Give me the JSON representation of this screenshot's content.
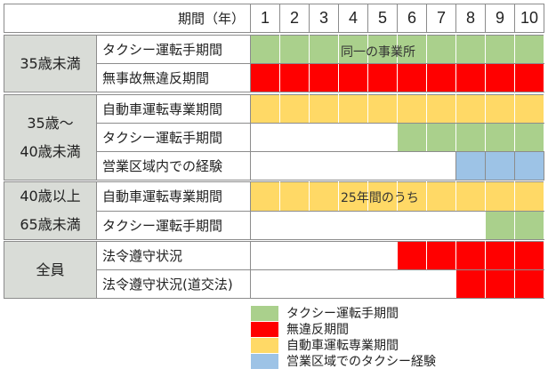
{
  "header": {
    "title": "期間（年）",
    "years": [
      "1",
      "2",
      "3",
      "4",
      "5",
      "6",
      "7",
      "8",
      "9",
      "10"
    ]
  },
  "groups": [
    {
      "label": "35歳未満",
      "rows": [
        {
          "category": "タクシー運転手期間",
          "cells": [
            "g",
            "g",
            "g",
            "g",
            "g",
            "g",
            "g",
            "g",
            "g",
            "g"
          ]
        },
        {
          "category": "無事故無違反期間",
          "cells": [
            "r",
            "r",
            "r",
            "r",
            "r",
            "r",
            "r",
            "r",
            "r",
            "r"
          ]
        }
      ],
      "note": "同一の事業所"
    },
    {
      "label": "35歳～40歳未満",
      "label_lines": [
        "35歳～",
        "40歳未満"
      ],
      "rows": [
        {
          "category": "自動車運転専業期間",
          "cells": [
            "y",
            "y",
            "y",
            "y",
            "y",
            "y",
            "y",
            "y",
            "y",
            "y"
          ]
        },
        {
          "category": "タクシー運転手期間",
          "cells": [
            "w",
            "w",
            "w",
            "w",
            "w",
            "g",
            "g",
            "g",
            "g",
            "g"
          ]
        },
        {
          "category": "営業区域内での経験",
          "cells": [
            "w",
            "w",
            "w",
            "w",
            "w",
            "w",
            "w",
            "b",
            "b",
            "b"
          ]
        }
      ]
    },
    {
      "label": "40歳以上65歳未満",
      "label_lines": [
        "40歳以上",
        "65歳未満"
      ],
      "rows": [
        {
          "category": "自動車運転専業期間",
          "cells": [
            "y",
            "y",
            "y",
            "y",
            "y",
            "y",
            "y",
            "y",
            "y",
            "y"
          ]
        },
        {
          "category": "タクシー運転手期間",
          "cells": [
            "w",
            "w",
            "w",
            "w",
            "w",
            "w",
            "w",
            "w",
            "g",
            "g"
          ]
        }
      ],
      "note": "25年間のうち"
    },
    {
      "label": "全員",
      "rows": [
        {
          "category": "法令遵守状況",
          "cells": [
            "w",
            "w",
            "w",
            "w",
            "w",
            "r",
            "r",
            "r",
            "r",
            "r"
          ]
        },
        {
          "category": "法令遵守状況(道交法)",
          "cells": [
            "w",
            "w",
            "w",
            "w",
            "w",
            "w",
            "w",
            "r",
            "r",
            "r"
          ]
        }
      ]
    }
  ],
  "legend": [
    {
      "label": "タクシー運転手期間",
      "color": "#aad08c"
    },
    {
      "label": "無違反期間",
      "color": "#ff0000"
    },
    {
      "label": "自動車運転専業期間",
      "color": "#ffd966"
    },
    {
      "label": "営業区域でのタクシー経験",
      "color": "#9dc3e6"
    }
  ]
}
